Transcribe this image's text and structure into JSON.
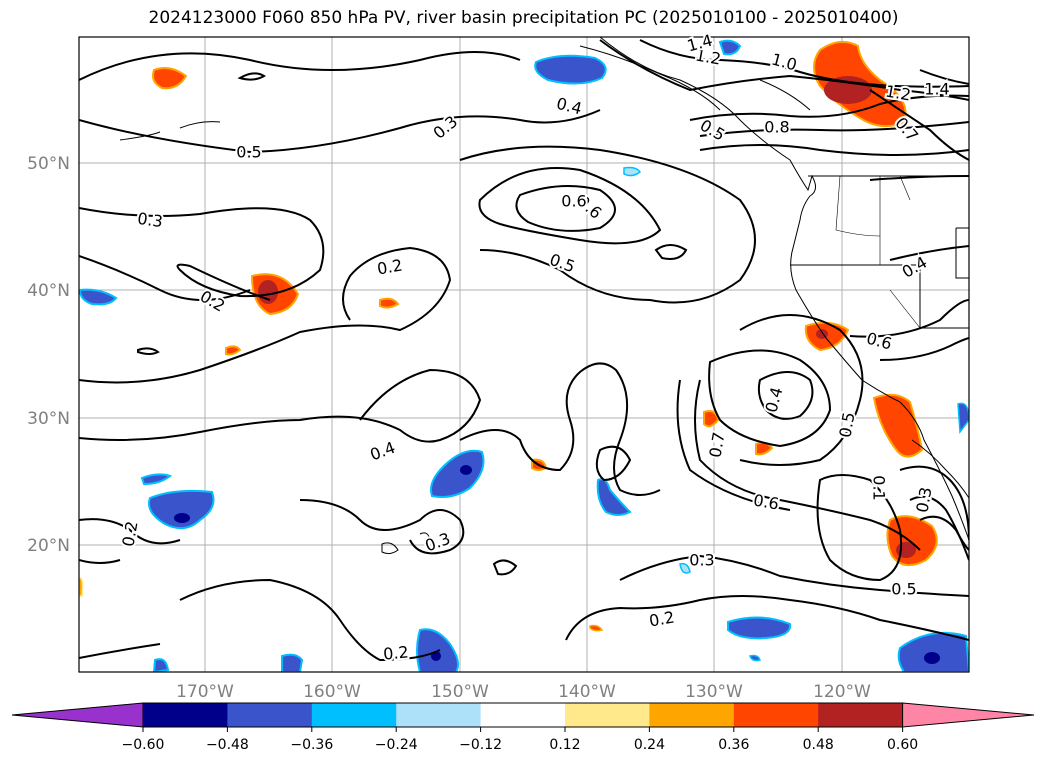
{
  "title": "2024123000 F060 850 hPa PV, river basin precipitation PC (2025010100 - 2025010400)",
  "lat_labels": [
    "50°N",
    "40°N",
    "30°N",
    "20°N"
  ],
  "lon_labels": [
    "170°W",
    "160°W",
    "150°W",
    "140°W",
    "130°W",
    "120°W"
  ],
  "contour_labels": [
    "0.5",
    "0.3",
    "0.4",
    "0.6",
    "0.5",
    "0.2",
    "0.2",
    "0.3",
    "0.2",
    "0.4",
    "0.3",
    "0.2",
    "0.2",
    "0.3",
    "0.6",
    "0.5",
    "0.4",
    "0.7",
    "0.5",
    "0.6",
    "0.1",
    "0.3",
    "0.5",
    "0.8",
    "1.0",
    "1.2",
    "1.4",
    "1.2",
    "1.4",
    "0.4",
    "0.6",
    "0.7"
  ],
  "colorbar": {
    "ticks": [
      "−0.60",
      "−0.48",
      "−0.36",
      "−0.24",
      "−0.12",
      "0.12",
      "0.24",
      "0.36",
      "0.48",
      "0.60"
    ],
    "colors": [
      "#9932CC",
      "#00008B",
      "#3A55CC",
      "#00BFFF",
      "#ADE1FA",
      "#FFFFFF",
      "#FFE98A",
      "#FFA500",
      "#FF4500",
      "#B22222",
      "#FF85A7"
    ]
  },
  "map_colors": {
    "strong_negative": "#3A55CC",
    "negative": "#00BFFF",
    "positive": "#FF4500",
    "strong_positive": "#B22222",
    "weak_positive": "#FFA500"
  }
}
